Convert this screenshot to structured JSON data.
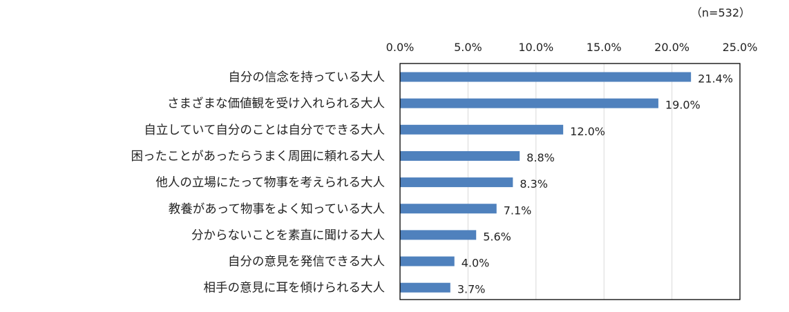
{
  "chart_data": {
    "type": "bar",
    "orientation": "horizontal",
    "note": "（n=532）",
    "categories": [
      "自分の信念を持っている大人",
      "さまざまな価値観を受け入れられる大人",
      "自立していて自分のことは自分でできる大人",
      "困ったことがあったらうまく周囲に頼れる大人",
      "他人の立場にたって物事を考えられる大人",
      "教養があって物事をよく知っている大人",
      "分からないことを素直に聞ける大人",
      "自分の意見を発信できる大人",
      "相手の意見に耳を傾けられる大人"
    ],
    "values": [
      21.4,
      19.0,
      12.0,
      8.8,
      8.3,
      7.1,
      5.6,
      4.0,
      3.7
    ],
    "data_labels": [
      "21.4%",
      "19.0%",
      "12.0%",
      "8.8%",
      "8.3%",
      "7.1%",
      "5.6%",
      "4.0%",
      "3.7%"
    ],
    "xlim": [
      0,
      25
    ],
    "xticks": [
      0,
      5,
      10,
      15,
      20,
      25
    ],
    "xtick_labels": [
      "0.0%",
      "5.0%",
      "10.0%",
      "15.0%",
      "20.0%",
      "25.0%"
    ],
    "axis_position": "top",
    "grid": true,
    "legend": "none",
    "bar_color": "#4F81BD",
    "grid_color": "#D9D9D9",
    "frame_color": "#000000"
  }
}
